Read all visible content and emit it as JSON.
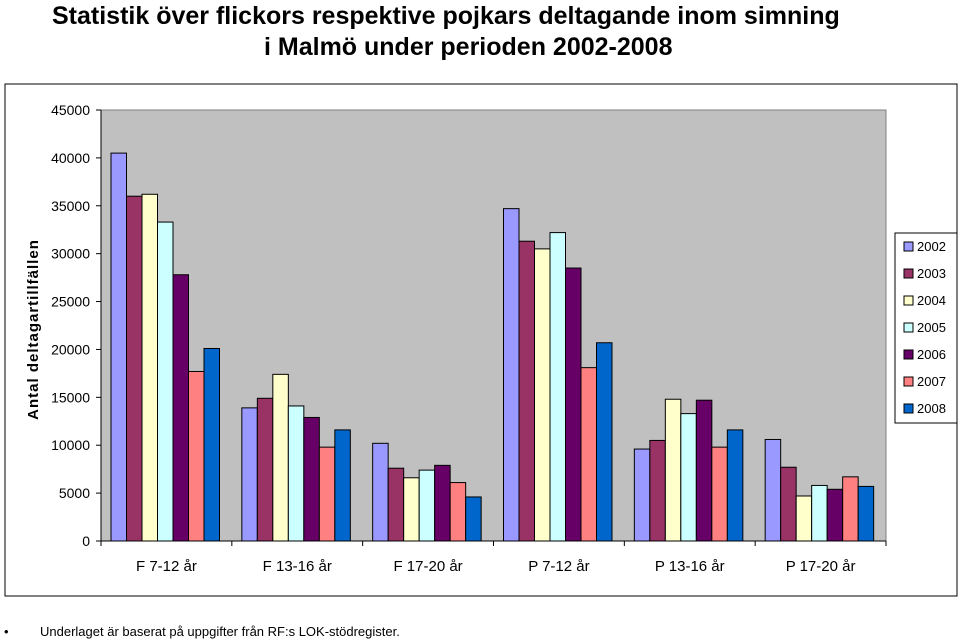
{
  "title_line1": "Statistik över flickors respektive pojkars deltagande inom simning",
  "title_line2": "i Malmö under perioden 2002-2008",
  "footnote": {
    "bullet": "•",
    "text": "Underlaget är baserat på uppgifter från RF:s LOK-stödregister."
  },
  "chart_data": {
    "type": "bar",
    "title": "Statistik över flickors respektive pojkars deltagande inom simning i Malmö under perioden 2002-2008",
    "xlabel": "",
    "ylabel": "Antal deltagartillfällen",
    "ylim": [
      0,
      45000
    ],
    "yticks": [
      "0",
      "5000",
      "10000",
      "15000",
      "20000",
      "25000",
      "30000",
      "35000",
      "40000",
      "45000"
    ],
    "grid": false,
    "legend_position": "right",
    "plot_background": "#c0c0c0",
    "categories": [
      "F 7-12 år",
      "F 13-16 år",
      "F 17-20 år",
      "P 7-12 år",
      "P 13-16 år",
      "P 17-20 år"
    ],
    "series": [
      {
        "name": "2002",
        "color": "#9999ff",
        "values": [
          40500,
          13900,
          10200,
          34700,
          9600,
          10600
        ]
      },
      {
        "name": "2003",
        "color": "#993366",
        "values": [
          36000,
          14900,
          7600,
          31300,
          10500,
          7700
        ]
      },
      {
        "name": "2004",
        "color": "#ffffcc",
        "values": [
          36200,
          17400,
          6600,
          30500,
          14800,
          4700
        ]
      },
      {
        "name": "2005",
        "color": "#ccffff",
        "values": [
          33300,
          14100,
          7400,
          32200,
          13300,
          5800
        ]
      },
      {
        "name": "2006",
        "color": "#660066",
        "values": [
          27800,
          12900,
          7900,
          28500,
          14700,
          5400
        ]
      },
      {
        "name": "2007",
        "color": "#ff8080",
        "values": [
          17700,
          9800,
          6100,
          18100,
          9800,
          6700
        ]
      },
      {
        "name": "2008",
        "color": "#0066cc",
        "values": [
          20100,
          11600,
          4600,
          20700,
          11600,
          5700
        ]
      }
    ]
  }
}
